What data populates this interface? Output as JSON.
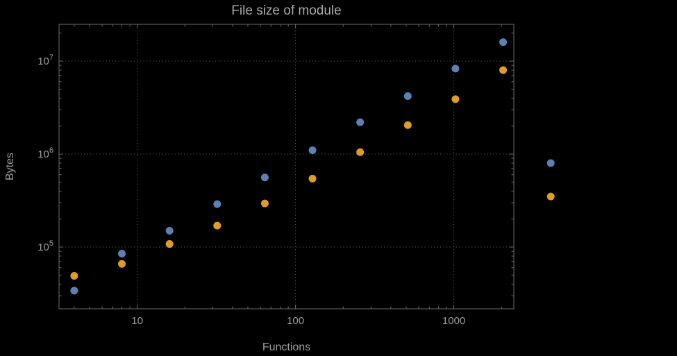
{
  "chart_data": {
    "type": "scatter",
    "title": "File size of module",
    "xlabel": "Functions",
    "ylabel": "Bytes",
    "x_scale": "log",
    "y_scale": "log",
    "grid": "dotted",
    "legend": "none",
    "x_range_log10": [
      0.506,
      3.379
    ],
    "y_range_log10": [
      4.336,
      7.396
    ],
    "x_ticks": [
      {
        "value": 10,
        "label": "10"
      },
      {
        "value": 100,
        "label": "100"
      },
      {
        "value": 1000,
        "label": "1000"
      }
    ],
    "y_ticks": [
      {
        "value": 100000,
        "base": "10",
        "exponent": "5"
      },
      {
        "value": 1000000,
        "base": "10",
        "exponent": "6"
      },
      {
        "value": 10000000,
        "base": "10",
        "exponent": "7"
      }
    ],
    "colors": {
      "background": "#000000",
      "frame": "#6a6a6a",
      "grid": "#575757",
      "text": "#9e9e9e",
      "title_text": "#a9a9a9",
      "series_blue": "#5e81b5",
      "series_orange": "#e19c24"
    },
    "series": [
      {
        "name": "blue",
        "color": "#5e81b5",
        "points": [
          [
            4,
            34000
          ],
          [
            8,
            85000
          ],
          [
            16,
            150000
          ],
          [
            32,
            290000
          ],
          [
            64,
            560000
          ],
          [
            128,
            1100000
          ],
          [
            256,
            2200000
          ],
          [
            512,
            4200000
          ],
          [
            1024,
            8300000
          ],
          [
            2048,
            16000000
          ],
          [
            4096,
            800000
          ]
        ]
      },
      {
        "name": "orange",
        "color": "#e19c24",
        "points": [
          [
            4,
            49000
          ],
          [
            8,
            66000
          ],
          [
            16,
            108000
          ],
          [
            32,
            170000
          ],
          [
            64,
            295000
          ],
          [
            128,
            545000
          ],
          [
            256,
            1050000
          ],
          [
            512,
            2050000
          ],
          [
            1024,
            3900000
          ],
          [
            2048,
            8000000
          ],
          [
            4096,
            350000
          ]
        ]
      }
    ]
  }
}
